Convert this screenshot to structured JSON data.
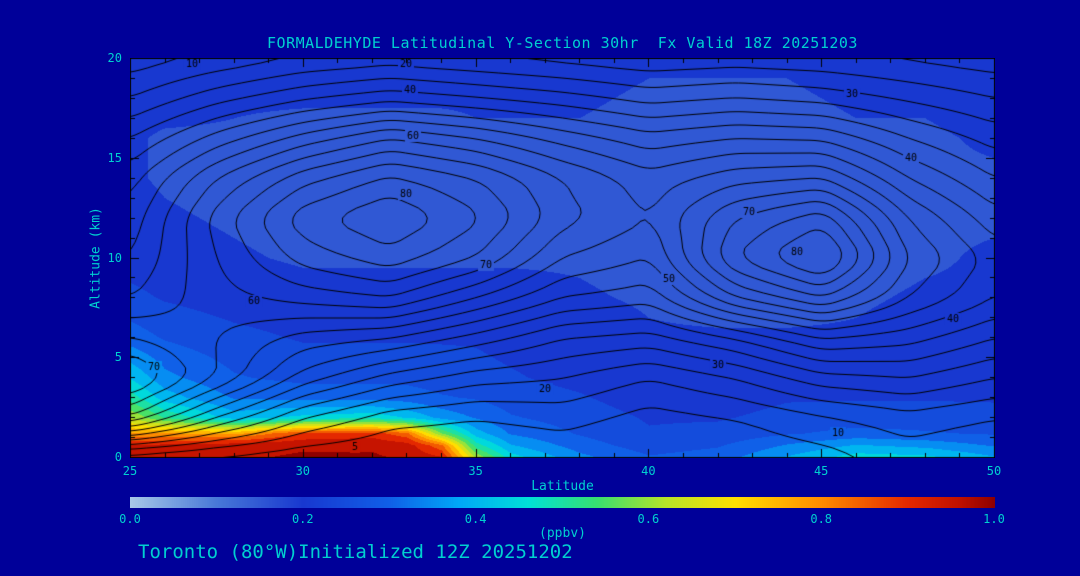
{
  "colors": {
    "background": "#000099",
    "text": "#00d0d0",
    "contour": "#000000",
    "frame": "#000000"
  },
  "chart_data": {
    "type": "heatmap",
    "title": "FORMALDEHYDE Latitudinal Y-Section 30hr  Fx Valid 18Z 20251203",
    "xlabel": "Latitude",
    "ylabel": "Altitude (km)",
    "units_label": "(ppbv)",
    "caption": "Toronto (80°W)Initialized 12Z 20251202",
    "x_range": [
      25,
      50
    ],
    "y_range": [
      0,
      20
    ],
    "x_ticks": [
      "25",
      "30",
      "35",
      "40",
      "45",
      "50"
    ],
    "y_ticks": [
      "0",
      "5",
      "10",
      "15",
      "20"
    ],
    "colorbar": {
      "min": 0.0,
      "max": 1.0,
      "ticks": [
        "0.0",
        "0.2",
        "0.4",
        "0.6",
        "0.8",
        "1.0"
      ]
    },
    "colormap": [
      [
        0.0,
        "#a8c8e8"
      ],
      [
        0.1,
        "#4878d8"
      ],
      [
        0.2,
        "#1838d0"
      ],
      [
        0.3,
        "#1060e8"
      ],
      [
        0.38,
        "#00a8f8"
      ],
      [
        0.46,
        "#00e0d8"
      ],
      [
        0.54,
        "#38df70"
      ],
      [
        0.62,
        "#b8e428"
      ],
      [
        0.7,
        "#ffdf00"
      ],
      [
        0.8,
        "#ff8c00"
      ],
      [
        0.9,
        "#e42800"
      ],
      [
        0.96,
        "#c01000"
      ],
      [
        1.0,
        "#8e0000"
      ]
    ],
    "fill": {
      "lats": [
        25,
        26,
        28,
        30,
        32,
        33,
        34,
        35,
        36,
        38,
        40,
        42,
        44,
        46,
        48,
        50
      ],
      "alts": [
        0,
        0.6,
        1.2,
        2,
        3,
        4,
        6,
        8,
        10,
        12,
        14,
        16,
        18,
        20
      ],
      "values": [
        [
          0.95,
          0.96,
          0.97,
          0.98,
          0.98,
          0.97,
          0.93,
          0.62,
          0.45,
          0.34,
          0.28,
          0.3,
          0.38,
          0.45,
          0.44,
          0.38
        ],
        [
          0.93,
          0.94,
          0.96,
          0.97,
          0.97,
          0.95,
          0.84,
          0.5,
          0.38,
          0.3,
          0.25,
          0.27,
          0.33,
          0.38,
          0.36,
          0.32
        ],
        [
          0.78,
          0.78,
          0.76,
          0.88,
          0.9,
          0.84,
          0.58,
          0.4,
          0.32,
          0.27,
          0.23,
          0.24,
          0.27,
          0.29,
          0.28,
          0.27
        ],
        [
          0.62,
          0.52,
          0.4,
          0.44,
          0.46,
          0.42,
          0.36,
          0.32,
          0.28,
          0.25,
          0.22,
          0.22,
          0.24,
          0.25,
          0.25,
          0.24
        ],
        [
          0.5,
          0.4,
          0.32,
          0.31,
          0.31,
          0.3,
          0.28,
          0.27,
          0.25,
          0.23,
          0.2,
          0.2,
          0.22,
          0.22,
          0.22,
          0.22
        ],
        [
          0.42,
          0.34,
          0.28,
          0.26,
          0.26,
          0.26,
          0.25,
          0.24,
          0.23,
          0.21,
          0.19,
          0.19,
          0.2,
          0.2,
          0.2,
          0.2
        ],
        [
          0.3,
          0.27,
          0.24,
          0.22,
          0.22,
          0.22,
          0.22,
          0.22,
          0.21,
          0.2,
          0.18,
          0.18,
          0.18,
          0.18,
          0.19,
          0.19
        ],
        [
          0.24,
          0.22,
          0.2,
          0.19,
          0.19,
          0.19,
          0.19,
          0.19,
          0.19,
          0.18,
          0.17,
          0.16,
          0.16,
          0.17,
          0.18,
          0.18
        ],
        [
          0.2,
          0.19,
          0.18,
          0.17,
          0.17,
          0.17,
          0.17,
          0.17,
          0.17,
          0.17,
          0.16,
          0.15,
          0.15,
          0.16,
          0.17,
          0.18
        ],
        [
          0.19,
          0.18,
          0.17,
          0.16,
          0.16,
          0.16,
          0.16,
          0.16,
          0.16,
          0.16,
          0.15,
          0.15,
          0.15,
          0.16,
          0.17,
          0.17
        ],
        [
          0.18,
          0.17,
          0.16,
          0.16,
          0.15,
          0.15,
          0.15,
          0.16,
          0.16,
          0.16,
          0.15,
          0.15,
          0.15,
          0.16,
          0.17,
          0.17
        ],
        [
          0.18,
          0.17,
          0.17,
          0.16,
          0.16,
          0.16,
          0.16,
          0.17,
          0.17,
          0.17,
          0.16,
          0.16,
          0.16,
          0.17,
          0.17,
          0.18
        ],
        [
          0.19,
          0.19,
          0.18,
          0.18,
          0.18,
          0.18,
          0.18,
          0.18,
          0.18,
          0.18,
          0.17,
          0.17,
          0.17,
          0.18,
          0.18,
          0.19
        ],
        [
          0.2,
          0.2,
          0.2,
          0.19,
          0.19,
          0.19,
          0.19,
          0.19,
          0.19,
          0.19,
          0.18,
          0.18,
          0.18,
          0.19,
          0.19,
          0.2
        ]
      ]
    },
    "contours": {
      "lats": [
        25,
        27.5,
        30,
        32.5,
        35,
        37.5,
        40,
        42.5,
        45,
        47.5,
        50
      ],
      "alts": [
        0,
        2,
        4,
        6,
        8,
        10,
        12,
        14,
        16,
        18,
        20
      ],
      "values": [
        [
          10,
          8,
          6,
          5,
          5,
          6,
          5,
          6,
          8,
          12,
          10
        ],
        [
          55,
          35,
          20,
          12,
          10,
          12,
          8,
          10,
          14,
          18,
          15
        ],
        [
          72,
          55,
          38,
          28,
          22,
          20,
          15,
          20,
          28,
          30,
          25
        ],
        [
          60,
          55,
          48,
          45,
          38,
          30,
          28,
          35,
          45,
          42,
          35
        ],
        [
          50,
          58,
          62,
          65,
          55,
          45,
          42,
          60,
          70,
          55,
          45
        ],
        [
          45,
          60,
          72,
          78,
          70,
          55,
          50,
          75,
          88,
          60,
          48
        ],
        [
          42,
          62,
          78,
          85,
          76,
          62,
          55,
          70,
          78,
          55,
          42
        ],
        [
          38,
          55,
          68,
          76,
          70,
          60,
          52,
          58,
          60,
          45,
          35
        ],
        [
          30,
          42,
          52,
          60,
          55,
          48,
          42,
          45,
          44,
          35,
          28
        ],
        [
          20,
          28,
          34,
          38,
          35,
          32,
          28,
          30,
          28,
          24,
          20
        ],
        [
          12,
          16,
          20,
          22,
          20,
          18,
          16,
          17,
          16,
          14,
          12
        ]
      ],
      "levels": [
        5,
        10,
        15,
        20,
        25,
        30,
        35,
        40,
        45,
        50,
        55,
        60,
        65,
        70,
        75,
        80,
        85
      ],
      "labels": [
        {
          "t": "10",
          "lat": 26.8,
          "alt": 19.7
        },
        {
          "t": "20",
          "lat": 33.0,
          "alt": 19.7
        },
        {
          "t": "40",
          "lat": 33.1,
          "alt": 18.4
        },
        {
          "t": "60",
          "lat": 33.2,
          "alt": 16.1
        },
        {
          "t": "80",
          "lat": 33.0,
          "alt": 13.2
        },
        {
          "t": "30",
          "lat": 45.9,
          "alt": 18.2
        },
        {
          "t": "40",
          "lat": 47.6,
          "alt": 15.0
        },
        {
          "t": "70",
          "lat": 35.3,
          "alt": 9.6
        },
        {
          "t": "60",
          "lat": 28.6,
          "alt": 7.8
        },
        {
          "t": "70",
          "lat": 25.7,
          "alt": 4.5
        },
        {
          "t": "50",
          "lat": 40.6,
          "alt": 8.9
        },
        {
          "t": "80",
          "lat": 44.3,
          "alt": 10.3
        },
        {
          "t": "70",
          "lat": 42.9,
          "alt": 12.3
        },
        {
          "t": "40",
          "lat": 48.8,
          "alt": 6.9
        },
        {
          "t": "30",
          "lat": 42.0,
          "alt": 4.6
        },
        {
          "t": "20",
          "lat": 37.0,
          "alt": 3.4
        },
        {
          "t": "10",
          "lat": 45.5,
          "alt": 1.2
        },
        {
          "t": "5",
          "lat": 31.5,
          "alt": 0.5
        }
      ]
    }
  }
}
